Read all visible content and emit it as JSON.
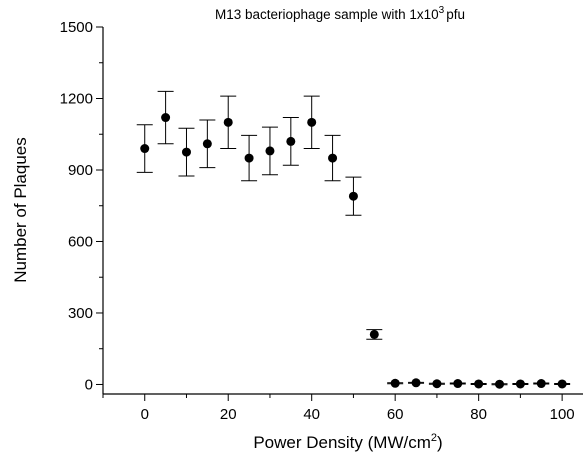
{
  "chart_data": {
    "type": "scatter",
    "title": "M13 bacteriophage sample with 1x10",
    "title_superscript": "3",
    "title_suffix": "pfu",
    "xlabel": "Power Density (MW/cm",
    "xlabel_superscript": "2",
    "xlabel_suffix": ")",
    "ylabel": "Number of Plaques",
    "xlim": [
      -10,
      105
    ],
    "ylim": [
      -40,
      1500
    ],
    "x_ticks": [
      0,
      20,
      40,
      60,
      80,
      100
    ],
    "y_ticks": [
      0,
      300,
      600,
      900,
      1200,
      1500
    ],
    "x_tick_labels": [
      "0",
      "20",
      "40",
      "60",
      "80",
      "100"
    ],
    "y_tick_labels": [
      "0",
      "300",
      "600",
      "900",
      "1200",
      "1500"
    ],
    "grid": false,
    "legend": "none",
    "marker_color": "#000000",
    "points": [
      {
        "x": 0,
        "y": 990,
        "err": 100
      },
      {
        "x": 5,
        "y": 1120,
        "err": 110
      },
      {
        "x": 10,
        "y": 975,
        "err": 100
      },
      {
        "x": 15,
        "y": 1010,
        "err": 100
      },
      {
        "x": 20,
        "y": 1100,
        "err": 110
      },
      {
        "x": 25,
        "y": 950,
        "err": 95
      },
      {
        "x": 30,
        "y": 980,
        "err": 100
      },
      {
        "x": 35,
        "y": 1020,
        "err": 100
      },
      {
        "x": 40,
        "y": 1100,
        "err": 110
      },
      {
        "x": 45,
        "y": 950,
        "err": 95
      },
      {
        "x": 50,
        "y": 790,
        "err": 80
      },
      {
        "x": 55,
        "y": 210,
        "err": 20
      },
      {
        "x": 60,
        "y": 5,
        "err": 2
      },
      {
        "x": 65,
        "y": 7,
        "err": 2
      },
      {
        "x": 70,
        "y": 3,
        "err": 2
      },
      {
        "x": 75,
        "y": 4,
        "err": 2
      },
      {
        "x": 80,
        "y": 2,
        "err": 2
      },
      {
        "x": 85,
        "y": 1,
        "err": 2
      },
      {
        "x": 90,
        "y": 2,
        "err": 2
      },
      {
        "x": 95,
        "y": 4,
        "err": 2
      },
      {
        "x": 100,
        "y": 2,
        "err": 2
      }
    ]
  }
}
